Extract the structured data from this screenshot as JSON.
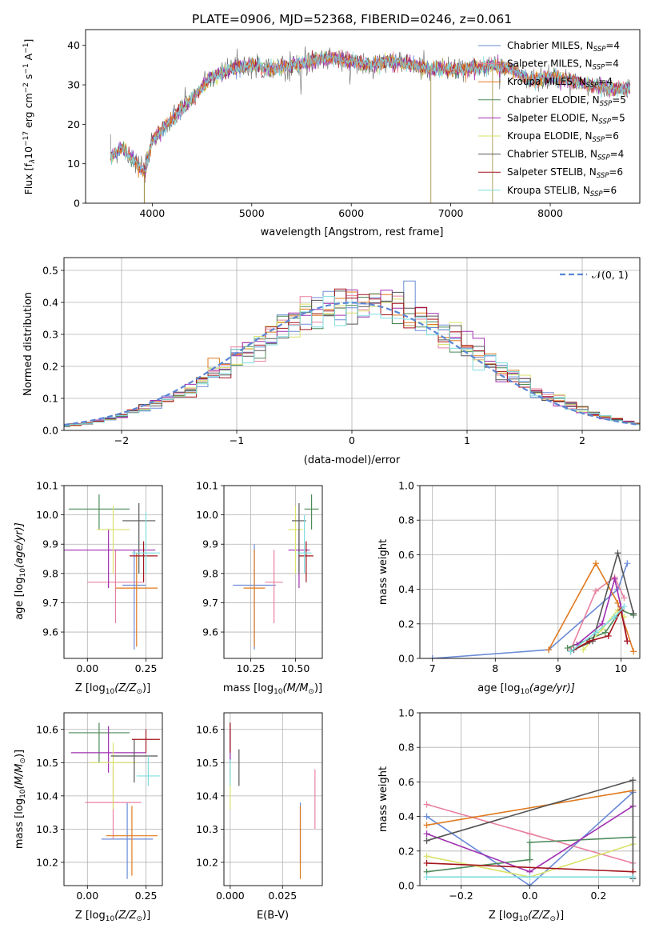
{
  "figure": {
    "title": "PLATE=0906, MJD=52368, FIBERID=0246, z=0.061"
  },
  "series": [
    {
      "name": "Chabrier MILES, N",
      "sub": "SSP",
      "suffix": "=4",
      "color": "#6a8bd6"
    },
    {
      "name": "Salpeter MILES, N",
      "sub": "SSP",
      "suffix": "=4",
      "color": "#e8819f"
    },
    {
      "name": "Kroupa MILES, N",
      "sub": "SSP",
      "suffix": "=4",
      "color": "#e07a1f"
    },
    {
      "name": "Chabrier ELODIE, N",
      "sub": "SSP",
      "suffix": "=5",
      "color": "#4e8a5a"
    },
    {
      "name": "Salpeter ELODIE, N",
      "sub": "SSP",
      "suffix": "=5",
      "color": "#a02fb0"
    },
    {
      "name": "Kroupa ELODIE, N",
      "sub": "SSP",
      "suffix": "=6",
      "color": "#d9e26a"
    },
    {
      "name": "Chabrier STELIB, N",
      "sub": "SSP",
      "suffix": "=4",
      "color": "#555555"
    },
    {
      "name": "Salpeter STELIB, N",
      "sub": "SSP",
      "suffix": "=6",
      "color": "#a3141c"
    },
    {
      "name": "Kroupa STELIB, N",
      "sub": "SSP",
      "suffix": "=6",
      "color": "#7fdde0"
    }
  ],
  "chart_data": [
    {
      "id": "spectrum",
      "type": "line",
      "xlabel": "wavelength [Angstrom, rest frame]",
      "ylabel_main": "Flux [f",
      "ylabel_rest": "10",
      "ylabel_exp1": "−17",
      "ylabel_unit": " erg cm",
      "ylabel_exp2": "−2",
      "ylabel_s": " s",
      "ylabel_exp3": "−1",
      "ylabel_A": " A",
      "ylabel_exp4": "−1",
      "ylabel_end": "]",
      "xlim": [
        3330,
        8900
      ],
      "ylim": [
        0,
        44
      ],
      "xticks": [
        "4000",
        "5000",
        "6000",
        "7000",
        "8000"
      ],
      "yticks": [
        "0",
        "10",
        "20",
        "30",
        "40"
      ],
      "xtick_values": [
        4000,
        5000,
        6000,
        7000,
        8000
      ],
      "ytick_values": [
        0,
        10,
        20,
        30,
        40
      ],
      "anchors": [
        [
          3600,
          12
        ],
        [
          3700,
          14
        ],
        [
          3800,
          11
        ],
        [
          3930,
          8
        ],
        [
          4000,
          16
        ],
        [
          4150,
          20
        ],
        [
          4300,
          24
        ],
        [
          4450,
          28
        ],
        [
          4600,
          32
        ],
        [
          4800,
          34
        ],
        [
          5000,
          35
        ],
        [
          5200,
          34
        ],
        [
          5400,
          35
        ],
        [
          5600,
          36
        ],
        [
          5800,
          37
        ],
        [
          6000,
          36
        ],
        [
          6200,
          35
        ],
        [
          6400,
          36
        ],
        [
          6600,
          35
        ],
        [
          6800,
          34
        ],
        [
          7000,
          34
        ],
        [
          7200,
          34
        ],
        [
          7400,
          35
        ],
        [
          7600,
          34
        ],
        [
          7800,
          31
        ],
        [
          8000,
          32
        ],
        [
          8200,
          31
        ],
        [
          8400,
          30
        ],
        [
          8600,
          29
        ],
        [
          8800,
          29
        ]
      ],
      "drop_lines": [
        3920,
        6800,
        7420
      ],
      "legend": "upper right"
    },
    {
      "id": "residuals",
      "type": "histogram",
      "xlabel": "(data-model)/error",
      "ylabel": "Normed distribution",
      "xlim": [
        -2.5,
        2.5
      ],
      "ylim": [
        0,
        0.54
      ],
      "xticks": [
        "−2",
        "−1",
        "0",
        "1",
        "2"
      ],
      "yticks": [
        "0.0",
        "0.1",
        "0.2",
        "0.3",
        "0.4",
        "0.5"
      ],
      "xtick_values": [
        -2,
        -1,
        0,
        1,
        2
      ],
      "ytick_values": [
        0,
        0.1,
        0.2,
        0.3,
        0.4,
        0.5
      ],
      "bin_width": 0.1,
      "reference_label": "𝒩(0, 1)",
      "reference_color": "#5b86d4",
      "legend": "upper right"
    },
    {
      "id": "age_vs_Z",
      "type": "scatter",
      "xlabel": "Z [log",
      "xlabel_sub": "10",
      "xlabel_rest": "(Z/Z",
      "xlabel_sun": "⊙",
      "xlabel_end": ")]",
      "ylabel": "age  [log",
      "ylabel_sub": "10",
      "ylabel_rest": "(age/yr)]",
      "xlim": [
        -0.1,
        0.32
      ],
      "ylim": [
        9.51,
        10.1
      ],
      "xticks": [
        "0.00",
        "0.25"
      ],
      "yticks": [
        "9.6",
        "9.7",
        "9.8",
        "9.9",
        "10.0",
        "10.1"
      ],
      "xtick_values": [
        0,
        0.25
      ],
      "ytick_values": [
        9.6,
        9.7,
        9.8,
        9.9,
        10.0,
        10.1
      ],
      "points": [
        {
          "s": 0,
          "x": 0.2,
          "xerr": 0.05,
          "y": 9.76,
          "ylo": 9.54,
          "yhi": 9.88
        },
        {
          "s": 1,
          "x": 0.12,
          "xerr": 0.12,
          "y": 9.77,
          "ylo": 9.63,
          "yhi": 9.88
        },
        {
          "s": 2,
          "x": 0.21,
          "xerr": 0.09,
          "y": 9.75,
          "ylo": 9.55,
          "yhi": 9.87
        },
        {
          "s": 3,
          "x": 0.05,
          "xerr": 0.13,
          "y": 10.02,
          "ylo": 9.95,
          "yhi": 10.07
        },
        {
          "s": 4,
          "x": 0.09,
          "xerr": 0.2,
          "y": 9.88,
          "ylo": 9.75,
          "yhi": 9.95
        },
        {
          "s": 5,
          "x": 0.11,
          "xerr": 0.07,
          "y": 9.95,
          "ylo": 9.8,
          "yhi": 10.03
        },
        {
          "s": 6,
          "x": 0.22,
          "xerr": 0.07,
          "y": 9.98,
          "ylo": 9.8,
          "yhi": 10.04
        },
        {
          "s": 7,
          "x": 0.24,
          "xerr": 0.06,
          "y": 9.86,
          "ylo": 9.77,
          "yhi": 9.91
        },
        {
          "s": 8,
          "x": 0.25,
          "xerr": 0.06,
          "y": 9.87,
          "ylo": 9.8,
          "yhi": 10.01
        }
      ]
    },
    {
      "id": "age_vs_mass",
      "type": "scatter",
      "xlabel": "mass [log",
      "xlabel_sub": "10",
      "xlabel_rest": "(M/M",
      "xlabel_sun": "⊙",
      "xlabel_end": ")]",
      "xlim": [
        10.1,
        10.65
      ],
      "ylim": [
        9.51,
        10.1
      ],
      "xticks": [
        "10.25",
        "10.50"
      ],
      "yticks": [
        "9.6",
        "9.7",
        "9.8",
        "9.9",
        "10.0",
        "10.1"
      ],
      "xtick_values": [
        10.25,
        10.5
      ],
      "ytick_values": [
        9.6,
        9.7,
        9.8,
        9.9,
        10.0,
        10.1
      ],
      "points": [
        {
          "s": 0,
          "x": 10.27,
          "xerr": 0.12,
          "y": 9.76,
          "ylo": 9.54,
          "yhi": 9.9
        },
        {
          "s": 1,
          "x": 10.38,
          "xerr": 0.05,
          "y": 9.77,
          "ylo": 9.63,
          "yhi": 9.88
        },
        {
          "s": 2,
          "x": 10.27,
          "xerr": 0.06,
          "y": 9.75,
          "ylo": 9.55,
          "yhi": 9.88
        },
        {
          "s": 3,
          "x": 10.59,
          "xerr": 0.04,
          "y": 10.02,
          "ylo": 9.95,
          "yhi": 10.07
        },
        {
          "s": 4,
          "x": 10.52,
          "xerr": 0.06,
          "y": 9.88,
          "ylo": 9.75,
          "yhi": 9.95
        },
        {
          "s": 5,
          "x": 10.5,
          "xerr": 0.04,
          "y": 9.95,
          "ylo": 9.8,
          "yhi": 10.03
        },
        {
          "s": 6,
          "x": 10.52,
          "xerr": 0.04,
          "y": 9.98,
          "ylo": 9.8,
          "yhi": 10.04
        },
        {
          "s": 7,
          "x": 10.56,
          "xerr": 0.04,
          "y": 9.86,
          "ylo": 9.77,
          "yhi": 9.91
        },
        {
          "s": 8,
          "x": 10.55,
          "xerr": 0.04,
          "y": 9.87,
          "ylo": 9.8,
          "yhi": 10.0
        }
      ]
    },
    {
      "id": "weight_vs_age",
      "type": "line",
      "xlabel": "age  [log",
      "xlabel_sub": "10",
      "xlabel_rest": "(age/yr)]",
      "ylabel": "mass weight",
      "xlim": [
        6.8,
        10.3
      ],
      "ylim": [
        0,
        1
      ],
      "xticks": [
        "7",
        "8",
        "9",
        "10"
      ],
      "yticks": [
        "0.0",
        "0.2",
        "0.4",
        "0.6",
        "0.8",
        "1.0"
      ],
      "xtick_values": [
        7,
        8,
        9,
        10
      ],
      "ytick_values": [
        0,
        0.2,
        0.4,
        0.6,
        0.8,
        1.0
      ],
      "lines": [
        {
          "s": 0,
          "x": [
            7.0,
            8.85,
            9.95,
            10.1
          ],
          "y": [
            0.0,
            0.05,
            0.4,
            0.55
          ]
        },
        {
          "s": 1,
          "x": [
            9.2,
            9.6,
            9.9,
            10.05
          ],
          "y": [
            0.05,
            0.39,
            0.47,
            0.35
          ]
        },
        {
          "s": 2,
          "x": [
            8.85,
            9.6,
            9.95,
            10.2
          ],
          "y": [
            0.05,
            0.55,
            0.32,
            0.04
          ]
        },
        {
          "s": 3,
          "x": [
            9.15,
            9.75,
            10.0,
            10.2
          ],
          "y": [
            0.06,
            0.15,
            0.28,
            0.25
          ]
        },
        {
          "s": 4,
          "x": [
            9.3,
            9.7,
            9.9,
            10.0,
            10.1
          ],
          "y": [
            0.08,
            0.2,
            0.46,
            0.3,
            0.1
          ]
        },
        {
          "s": 5,
          "x": [
            9.4,
            9.7,
            9.95,
            10.05
          ],
          "y": [
            0.05,
            0.17,
            0.28,
            0.24
          ]
        },
        {
          "s": 6,
          "x": [
            9.25,
            9.55,
            9.95,
            10.2
          ],
          "y": [
            0.05,
            0.1,
            0.61,
            0.26
          ]
        },
        {
          "s": 7,
          "x": [
            9.2,
            9.5,
            9.8,
            10.0,
            10.1
          ],
          "y": [
            0.04,
            0.1,
            0.13,
            0.28,
            0.1
          ]
        },
        {
          "s": 8,
          "x": [
            9.2,
            9.6,
            9.9,
            10.05
          ],
          "y": [
            0.04,
            0.15,
            0.24,
            0.3
          ]
        }
      ]
    },
    {
      "id": "mass_vs_Z",
      "type": "scatter",
      "xlabel": "Z [log",
      "xlabel_sub": "10",
      "xlabel_rest": "(Z/Z",
      "xlabel_sun": "⊙",
      "xlabel_end": ")]",
      "ylabel": "mass [log",
      "ylabel_sub": "10",
      "ylabel_rest": "(M/M",
      "ylabel_sun": "⊙",
      "ylabel_end": ")]",
      "xlim": [
        -0.1,
        0.32
      ],
      "ylim": [
        10.13,
        10.65
      ],
      "xticks": [
        "0.00",
        "0.25"
      ],
      "yticks": [
        "10.2",
        "10.3",
        "10.4",
        "10.5",
        "10.6"
      ],
      "xtick_values": [
        0,
        0.25
      ],
      "ytick_values": [
        10.2,
        10.3,
        10.4,
        10.5,
        10.6
      ],
      "points": [
        {
          "s": 0,
          "x": 0.17,
          "xerr": 0.11,
          "y": 10.27,
          "ylo": 10.15,
          "yhi": 10.38
        },
        {
          "s": 1,
          "x": 0.11,
          "xerr": 0.12,
          "y": 10.38,
          "ylo": 10.27,
          "yhi": 10.49
        },
        {
          "s": 2,
          "x": 0.19,
          "xerr": 0.11,
          "y": 10.28,
          "ylo": 10.16,
          "yhi": 10.37
        },
        {
          "s": 3,
          "x": 0.05,
          "xerr": 0.13,
          "y": 10.59,
          "ylo": 10.5,
          "yhi": 10.62
        },
        {
          "s": 4,
          "x": 0.09,
          "xerr": 0.16,
          "y": 10.53,
          "ylo": 10.47,
          "yhi": 10.61
        },
        {
          "s": 5,
          "x": 0.11,
          "xerr": 0.1,
          "y": 10.5,
          "ylo": 10.36,
          "yhi": 10.56
        },
        {
          "s": 6,
          "x": 0.2,
          "xerr": 0.1,
          "y": 10.52,
          "ylo": 10.44,
          "yhi": 10.57
        },
        {
          "s": 7,
          "x": 0.25,
          "xerr": 0.06,
          "y": 10.57,
          "ylo": 10.53,
          "yhi": 10.6
        },
        {
          "s": 8,
          "x": 0.26,
          "xerr": 0.05,
          "y": 10.46,
          "ylo": 10.43,
          "yhi": 10.52
        }
      ]
    },
    {
      "id": "mass_vs_ebv",
      "type": "scatter",
      "xlabel": "E(B-V)",
      "xlim": [
        -0.003,
        0.044
      ],
      "ylim": [
        10.13,
        10.65
      ],
      "xticks": [
        "0.000",
        "0.025"
      ],
      "yticks": [
        "10.2",
        "10.3",
        "10.4",
        "10.5",
        "10.6"
      ],
      "xtick_values": [
        0,
        0.025
      ],
      "ytick_values": [
        10.2,
        10.3,
        10.4,
        10.5,
        10.6
      ],
      "points": [
        {
          "s": 0,
          "x": 0.0335,
          "xerr": 0,
          "y": 10.28,
          "ylo": 10.2,
          "yhi": 10.38
        },
        {
          "s": 1,
          "x": 0.0405,
          "xerr": 0,
          "y": 10.4,
          "ylo": 10.3,
          "yhi": 10.48
        },
        {
          "s": 2,
          "x": 0.0335,
          "xerr": 0,
          "y": 10.27,
          "ylo": 10.15,
          "yhi": 10.37
        },
        {
          "s": 3,
          "x": 0.0,
          "xerr": 0,
          "y": 10.57,
          "ylo": 10.5,
          "yhi": 10.62
        },
        {
          "s": 4,
          "x": 0.0,
          "xerr": 0,
          "y": 10.53,
          "ylo": 10.45,
          "yhi": 10.6
        },
        {
          "s": 5,
          "x": 0.0,
          "xerr": 0,
          "y": 10.44,
          "ylo": 10.36,
          "yhi": 10.5
        },
        {
          "s": 6,
          "x": 0.0042,
          "xerr": 0,
          "y": 10.48,
          "ylo": 10.43,
          "yhi": 10.54
        },
        {
          "s": 7,
          "x": 0.0,
          "xerr": 0,
          "y": 10.58,
          "ylo": 10.53,
          "yhi": 10.62
        },
        {
          "s": 8,
          "x": 0.0,
          "xerr": 0,
          "y": 10.46,
          "ylo": 10.43,
          "yhi": 10.51
        }
      ]
    },
    {
      "id": "weight_vs_Z",
      "type": "line",
      "xlabel": "Z [log",
      "xlabel_sub": "10",
      "xlabel_rest": "(Z/Z",
      "xlabel_sun": "⊙",
      "xlabel_end": ")]",
      "ylabel": "mass weight",
      "xlim": [
        -0.32,
        0.32
      ],
      "ylim": [
        0,
        1
      ],
      "xticks": [
        "−0.2",
        "0.0",
        "0.2"
      ],
      "yticks": [
        "0.0",
        "0.2",
        "0.4",
        "0.6",
        "0.8",
        "1.0"
      ],
      "xtick_values": [
        -0.2,
        0,
        0.2
      ],
      "ytick_values": [
        0,
        0.2,
        0.4,
        0.6,
        0.8,
        1.0
      ],
      "lines": [
        {
          "s": 0,
          "x": [
            -0.3,
            0.0,
            0.3
          ],
          "y": [
            0.4,
            0.0,
            0.54
          ]
        },
        {
          "s": 1,
          "x": [
            -0.3,
            0.0,
            0.3
          ],
          "y": [
            0.47,
            0.3,
            0.13
          ]
        },
        {
          "s": 2,
          "x": [
            -0.3,
            0.3
          ],
          "y": [
            0.35,
            0.55
          ]
        },
        {
          "s": 3,
          "x": [
            -0.3,
            0.0,
            0.0,
            0.3
          ],
          "y": [
            0.08,
            0.15,
            0.25,
            0.28
          ]
        },
        {
          "s": 4,
          "x": [
            -0.3,
            0.0,
            0.3
          ],
          "y": [
            0.3,
            0.08,
            0.46
          ]
        },
        {
          "s": 5,
          "x": [
            -0.3,
            0.0,
            0.3
          ],
          "y": [
            0.17,
            0.05,
            0.24
          ]
        },
        {
          "s": 6,
          "x": [
            -0.3,
            0.3,
            0.3
          ],
          "y": [
            0.26,
            0.61,
            0.04
          ]
        },
        {
          "s": 7,
          "x": [
            -0.3,
            0.3
          ],
          "y": [
            0.13,
            0.08
          ]
        },
        {
          "s": 8,
          "x": [
            -0.3,
            0.0,
            0.3
          ],
          "y": [
            0.05,
            0.05,
            0.05
          ]
        }
      ]
    }
  ]
}
